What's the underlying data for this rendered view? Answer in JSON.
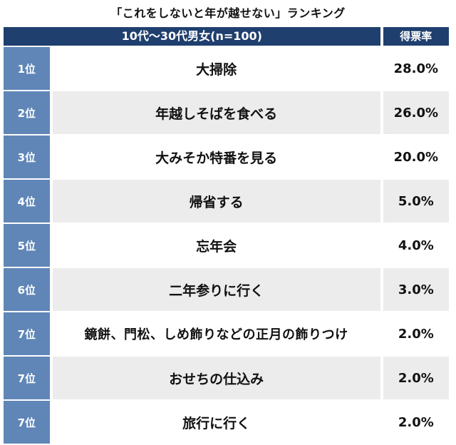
{
  "title": "「これをしないと年が越せない」ランキング",
  "table": {
    "group_header": "10代〜30代男女(n=100)",
    "rate_header": "得票率",
    "rows": [
      {
        "rank": "1位",
        "item": "大掃除",
        "rate": "28.0%"
      },
      {
        "rank": "2位",
        "item": "年越しそばを食べる",
        "rate": "26.0%"
      },
      {
        "rank": "3位",
        "item": "大みそか特番を見る",
        "rate": "20.0%"
      },
      {
        "rank": "4位",
        "item": "帰省する",
        "rate": "5.0%"
      },
      {
        "rank": "5位",
        "item": "忘年会",
        "rate": "4.0%"
      },
      {
        "rank": "6位",
        "item": "二年参りに行く",
        "rate": "3.0%"
      },
      {
        "rank": "7位",
        "item": "鏡餅、門松、しめ飾りなどの正月の飾りつけ",
        "rate": "2.0%"
      },
      {
        "rank": "7位",
        "item": "おせちの仕込み",
        "rate": "2.0%"
      },
      {
        "rank": "7位",
        "item": "旅行に行く",
        "rate": "2.0%"
      }
    ]
  },
  "colors": {
    "header_bg": "#1f3f6e",
    "rank_bg": "#5f86b7",
    "row_alt_bg": "#ececec"
  }
}
